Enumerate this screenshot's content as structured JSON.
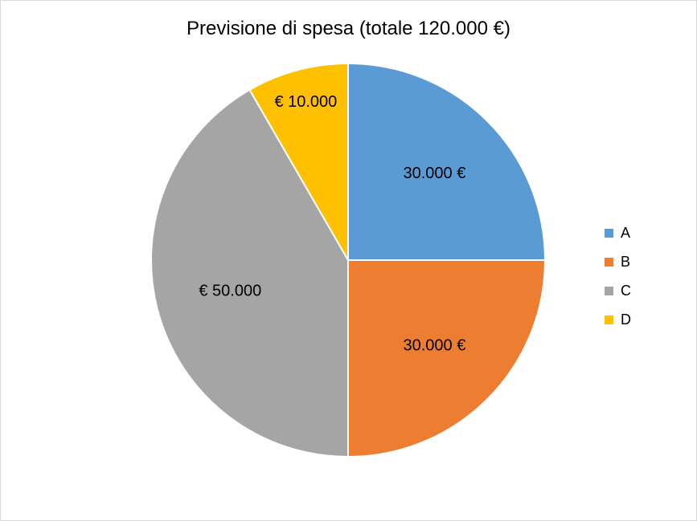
{
  "chart_data": {
    "type": "pie",
    "title": "Previsione di spesa (totale 120.000 €)",
    "categories": [
      "A",
      "B",
      "C",
      "D"
    ],
    "values": [
      30000,
      30000,
      50000,
      10000
    ],
    "data_labels": [
      "30.000 €",
      "30.000 €",
      "€ 50.000",
      "€ 10.000"
    ],
    "colors": [
      "#5b9bd5",
      "#ed7d31",
      "#a5a5a5",
      "#ffc000"
    ],
    "legend": {
      "entries": [
        "A",
        "B",
        "C",
        "D"
      ],
      "placement": "right"
    },
    "start_angle": "12 o'clock",
    "direction": "clockwise"
  }
}
